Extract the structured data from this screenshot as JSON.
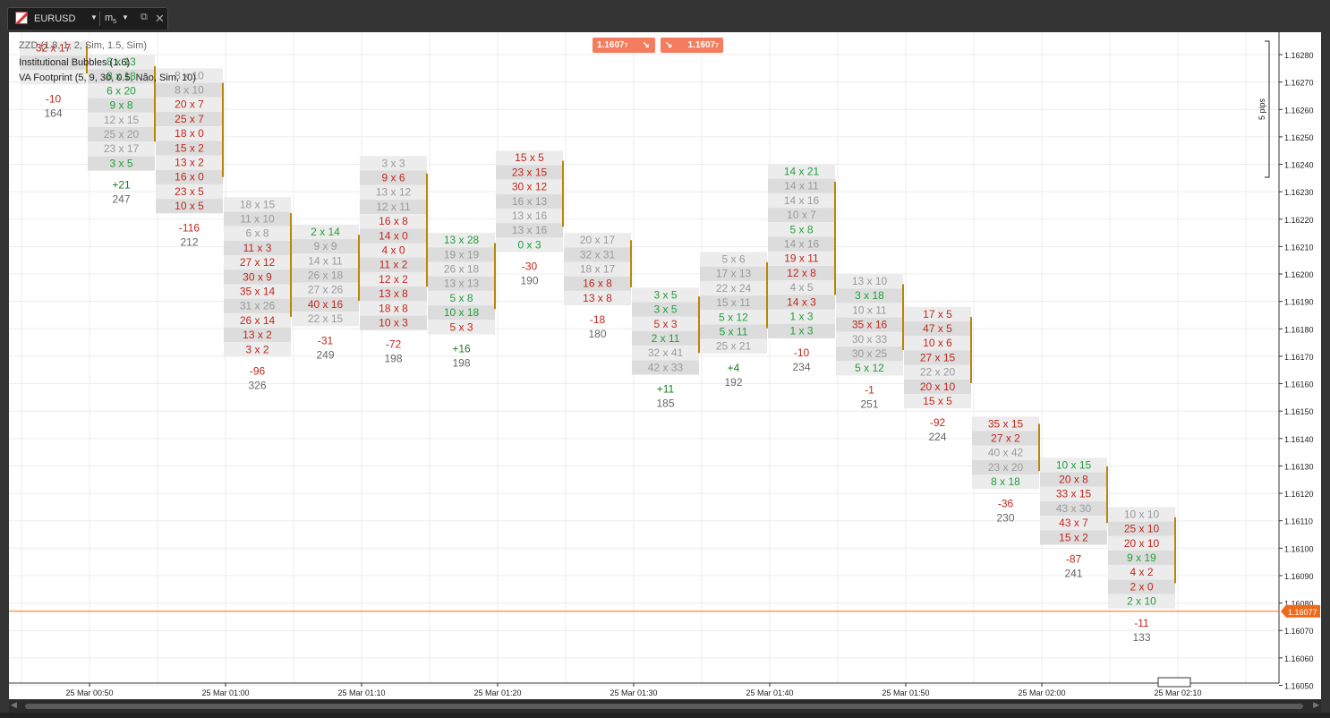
{
  "tab": {
    "symbol": "EURUSD",
    "timeframe": "m",
    "timeframe_sub": "5",
    "popout_icon": "popout-icon",
    "close_icon": "close-icon"
  },
  "legends": [
    "ZZD",
    "Institutional Bubbles (1.6)",
    "VA Footprint (5, 9, 30, 0.5, Não, Sim, 10)"
  ],
  "legend_partial": "ZZD (1.8, 1, 2, Sim, 1.5, Sim)",
  "price_buttons": {
    "sell": "1.1607",
    "sell_sub": "7",
    "buy": "1.1607",
    "buy_sub": "7"
  },
  "scale_label": "5 pips",
  "current_price": "1.16077",
  "colors": {
    "red": "#c0281d",
    "green": "#22a03b",
    "gray": "#9a9a9a",
    "shade": "#dcdcdc",
    "shade_alt": "#ececec",
    "vol_bar": "#b8860b",
    "price_line": "#ef6a1b"
  },
  "y_axis": {
    "min": 1.1605,
    "max": 1.1628,
    "step": 0.0001,
    "labels": [
      "1.16280",
      "1.16270",
      "1.16260",
      "1.16250",
      "1.16240",
      "1.16230",
      "1.16220",
      "1.16210",
      "1.16200",
      "1.16190",
      "1.16180",
      "1.16170",
      "1.16160",
      "1.16150",
      "1.16140",
      "1.16130",
      "1.16120",
      "1.16110",
      "1.16100",
      "1.16090",
      "1.16080",
      "1.16070",
      "1.16060",
      "1.16050"
    ]
  },
  "x_axis": {
    "labels": [
      "25 Mar 00:50",
      "25 Mar 01:00",
      "25 Mar 01:10",
      "25 Mar 01:20",
      "25 Mar 01:30",
      "25 Mar 01:40",
      "25 Mar 01:50",
      "25 Mar 02:00",
      "25 Mar 02:10"
    ]
  },
  "bars": [
    {
      "top": 1.16285,
      "rows": [
        [
          "32 x 17",
          "r"
        ],
        [
          "",
          "g"
        ],
        [
          "",
          "g"
        ]
      ],
      "delta": "-10",
      "dc": "r",
      "vol": "164"
    },
    {
      "top": 1.1628,
      "rows": [
        [
          "8 x 13",
          "g"
        ],
        [
          "8 x 18",
          "g"
        ],
        [
          "6 x 20",
          "g"
        ],
        [
          "9 x 8",
          "g"
        ],
        [
          "12 x 15",
          "x"
        ],
        [
          "25 x 20",
          "x"
        ],
        [
          "23 x 17",
          "x"
        ],
        [
          "3 x 5",
          "g"
        ]
      ],
      "delta": "+21",
      "dc": "g",
      "vol": "247"
    },
    {
      "top": 1.16275,
      "rows": [
        [
          "8 x 10",
          "x"
        ],
        [
          "8 x 10",
          "x"
        ],
        [
          "20 x 7",
          "r"
        ],
        [
          "25 x 7",
          "r"
        ],
        [
          "18 x 0",
          "r"
        ],
        [
          "15 x 2",
          "r"
        ],
        [
          "13 x 2",
          "r"
        ],
        [
          "16 x 0",
          "r"
        ],
        [
          "23 x 5",
          "r"
        ],
        [
          "10 x 5",
          "r"
        ]
      ],
      "delta": "-116",
      "dc": "r",
      "vol": "212"
    },
    {
      "top": 1.16228,
      "rows": [
        [
          "18 x 15",
          "x"
        ],
        [
          "11 x 10",
          "x"
        ],
        [
          "6 x 8",
          "x"
        ],
        [
          "11 x 3",
          "r"
        ],
        [
          "27 x 12",
          "r"
        ],
        [
          "30 x 9",
          "r"
        ],
        [
          "35 x 14",
          "r"
        ],
        [
          "31 x 26",
          "x"
        ],
        [
          "26 x 14",
          "r"
        ],
        [
          "13 x 2",
          "r"
        ],
        [
          "3 x 2",
          "r"
        ]
      ],
      "delta": "-96",
      "dc": "r",
      "vol": "326"
    },
    {
      "top": 1.16218,
      "rows": [
        [
          "2 x 14",
          "g"
        ],
        [
          "9 x 9",
          "x"
        ],
        [
          "14 x 11",
          "x"
        ],
        [
          "26 x 18",
          "x"
        ],
        [
          "27 x 26",
          "x"
        ],
        [
          "40 x 16",
          "r"
        ],
        [
          "22 x 15",
          "x"
        ]
      ],
      "delta": "-31",
      "dc": "r",
      "vol": "249"
    },
    {
      "top": 1.16243,
      "rows": [
        [
          "3 x 3",
          "x"
        ],
        [
          "9 x 6",
          "r"
        ],
        [
          "13 x 12",
          "x"
        ],
        [
          "12 x 11",
          "x"
        ],
        [
          "16 x 8",
          "r"
        ],
        [
          "14 x 0",
          "r"
        ],
        [
          "4 x 0",
          "r"
        ],
        [
          "11 x 2",
          "r"
        ],
        [
          "12 x 2",
          "r"
        ],
        [
          "13 x 8",
          "r"
        ],
        [
          "18 x 8",
          "r"
        ],
        [
          "10 x 3",
          "r"
        ]
      ],
      "delta": "-72",
      "dc": "r",
      "vol": "198"
    },
    {
      "top": 1.16215,
      "rows": [
        [
          "13 x 28",
          "g"
        ],
        [
          "19 x 19",
          "x"
        ],
        [
          "26 x 18",
          "x"
        ],
        [
          "13 x 13",
          "x"
        ],
        [
          "5 x 8",
          "g"
        ],
        [
          "10 x 18",
          "g"
        ],
        [
          "5 x 3",
          "r"
        ]
      ],
      "delta": "+16",
      "dc": "g",
      "vol": "198"
    },
    {
      "top": 1.16245,
      "rows": [
        [
          "15 x 5",
          "r"
        ],
        [
          "23 x 15",
          "r"
        ],
        [
          "30 x 12",
          "r"
        ],
        [
          "16 x 13",
          "x"
        ],
        [
          "13 x 16",
          "x"
        ],
        [
          "13 x 16",
          "x"
        ],
        [
          "0 x 3",
          "g"
        ]
      ],
      "delta": "-30",
      "dc": "r",
      "vol": "190"
    },
    {
      "top": 1.16215,
      "rows": [
        [
          "20 x 17",
          "x"
        ],
        [
          "32 x 31",
          "x"
        ],
        [
          "18 x 17",
          "x"
        ],
        [
          "16 x 8",
          "r"
        ],
        [
          "13 x 8",
          "r"
        ]
      ],
      "delta": "-18",
      "dc": "r",
      "vol": "180"
    },
    {
      "top": 1.16195,
      "rows": [
        [
          "3 x 5",
          "g"
        ],
        [
          "3 x 5",
          "g"
        ],
        [
          "5 x 3",
          "r"
        ],
        [
          "2 x 11",
          "g"
        ],
        [
          "32 x 41",
          "x"
        ],
        [
          "42 x 33",
          "x"
        ]
      ],
      "delta": "+11",
      "dc": "g",
      "vol": "185"
    },
    {
      "top": 1.16208,
      "rows": [
        [
          "5 x 6",
          "x"
        ],
        [
          "17 x 13",
          "x"
        ],
        [
          "22 x 24",
          "x"
        ],
        [
          "15 x 11",
          "x"
        ],
        [
          "5 x 12",
          "g"
        ],
        [
          "5 x 11",
          "g"
        ],
        [
          "25 x 21",
          "x"
        ]
      ],
      "delta": "+4",
      "dc": "g",
      "vol": "192"
    },
    {
      "top": 1.1624,
      "rows": [
        [
          "14 x 21",
          "g"
        ],
        [
          "14 x 11",
          "x"
        ],
        [
          "14 x 16",
          "x"
        ],
        [
          "10 x 7",
          "x"
        ],
        [
          "5 x 8",
          "g"
        ],
        [
          "14 x 16",
          "x"
        ],
        [
          "19 x 11",
          "r"
        ],
        [
          "12 x 8",
          "r"
        ],
        [
          "4 x 5",
          "x"
        ],
        [
          "14 x 3",
          "r"
        ],
        [
          "1 x 3",
          "g"
        ],
        [
          "1 x 3",
          "g"
        ]
      ],
      "delta": "-10",
      "dc": "r",
      "vol": "234"
    },
    {
      "top": 1.162,
      "rows": [
        [
          "13 x 10",
          "x"
        ],
        [
          "3 x 18",
          "g"
        ],
        [
          "10 x 11",
          "x"
        ],
        [
          "35 x 16",
          "r"
        ],
        [
          "30 x 33",
          "x"
        ],
        [
          "30 x 25",
          "x"
        ],
        [
          "5 x 12",
          "g"
        ]
      ],
      "delta": "-1",
      "dc": "r",
      "vol": "251"
    },
    {
      "top": 1.16188,
      "rows": [
        [
          "17 x 5",
          "r"
        ],
        [
          "47 x 5",
          "r"
        ],
        [
          "10 x 6",
          "r"
        ],
        [
          "27 x 15",
          "r"
        ],
        [
          "22 x 20",
          "x"
        ],
        [
          "20 x 10",
          "r"
        ],
        [
          "15 x 5",
          "r"
        ]
      ],
      "delta": "-92",
      "dc": "r",
      "vol": "224"
    },
    {
      "top": 1.16148,
      "rows": [
        [
          "35 x 15",
          "r"
        ],
        [
          "27 x 2",
          "r"
        ],
        [
          "40 x 42",
          "x"
        ],
        [
          "23 x 20",
          "x"
        ],
        [
          "8 x 18",
          "g"
        ]
      ],
      "delta": "-36",
      "dc": "r",
      "vol": "230"
    },
    {
      "top": 1.16133,
      "rows": [
        [
          "10 x 15",
          "g"
        ],
        [
          "20 x 8",
          "r"
        ],
        [
          "33 x 15",
          "r"
        ],
        [
          "43 x 30",
          "x"
        ],
        [
          "43 x 7",
          "r"
        ],
        [
          "15 x 2",
          "r"
        ]
      ],
      "delta": "-87",
      "dc": "r",
      "vol": "241"
    },
    {
      "top": 1.16115,
      "rows": [
        [
          "10 x 10",
          "x"
        ],
        [
          "25 x 10",
          "r"
        ],
        [
          "20 x 10",
          "r"
        ],
        [
          "9 x 19",
          "g"
        ],
        [
          "4 x 2",
          "r"
        ],
        [
          "2 x 0",
          "r"
        ],
        [
          "2 x 10",
          "g"
        ]
      ],
      "delta": "-11",
      "dc": "r",
      "vol": "133"
    }
  ]
}
